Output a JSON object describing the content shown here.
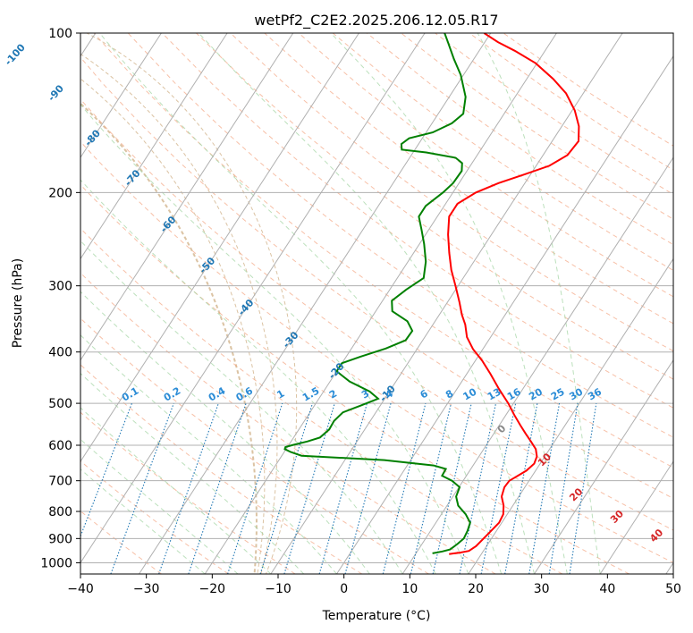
{
  "chart_data": {
    "type": "line",
    "title": "wetPf2_C2E2.2025.206.12.05.R17",
    "xlabel": "Temperature (°C)",
    "ylabel": "Pressure (hPa)",
    "xlim": [
      -40,
      50
    ],
    "ylim": [
      1050,
      100
    ],
    "y_scale": "log",
    "x_ticks": [
      "−40",
      "−30",
      "−20",
      "−10",
      "0",
      "10",
      "20",
      "30",
      "40",
      "50"
    ],
    "y_ticks": [
      {
        "p": 100,
        "label": "100"
      },
      {
        "p": 200,
        "label": "200"
      },
      {
        "p": 300,
        "label": "300"
      },
      {
        "p": 400,
        "label": "400"
      },
      {
        "p": 500,
        "label": "500"
      },
      {
        "p": 600,
        "label": "600"
      },
      {
        "p": 700,
        "label": "700"
      },
      {
        "p": 800,
        "label": "800"
      },
      {
        "p": 900,
        "label": "900"
      },
      {
        "p": 1000,
        "label": "1000"
      }
    ],
    "grid": true,
    "colors": {
      "temperature": "#ff0000",
      "dewpoint": "#008000",
      "grid": "#b0b0b0",
      "dry_adiabat": "#f4a582",
      "moist_adiabat": "#a6d5a6",
      "mixing_ratio": "#1f77b4",
      "thetae": "#d2b48c",
      "isotherm_label": "#1f77b4",
      "cape_label": "#d62728",
      "zero_label": "#888888"
    },
    "series": [
      {
        "key": "temperature",
        "points": [
          [
            15.1,
            963
          ],
          [
            16.6,
            957
          ],
          [
            17.8,
            950
          ],
          [
            18.4,
            930
          ],
          [
            18.8,
            900
          ],
          [
            19.2,
            870
          ],
          [
            19.6,
            840
          ],
          [
            19.4,
            810
          ],
          [
            18.6,
            780
          ],
          [
            17.4,
            750
          ],
          [
            16.9,
            720
          ],
          [
            17.0,
            700
          ],
          [
            17.8,
            685
          ],
          [
            18.6,
            670
          ],
          [
            19.1,
            650
          ],
          [
            18.8,
            630
          ],
          [
            17.9,
            610
          ],
          [
            16.4,
            590
          ],
          [
            14.8,
            570
          ],
          [
            13.2,
            550
          ],
          [
            11.2,
            525
          ],
          [
            9.2,
            500
          ],
          [
            6.4,
            470
          ],
          [
            3.6,
            440
          ],
          [
            1.0,
            415
          ],
          [
            -1.5,
            395
          ],
          [
            -3.6,
            375
          ],
          [
            -5.1,
            355
          ],
          [
            -6.6,
            340
          ],
          [
            -8.2,
            322
          ],
          [
            -10.4,
            300
          ],
          [
            -12.6,
            280
          ],
          [
            -14.6,
            260
          ],
          [
            -16.6,
            240
          ],
          [
            -18.2,
            222
          ],
          [
            -18.2,
            210
          ],
          [
            -16.5,
            200
          ],
          [
            -14.0,
            192
          ],
          [
            -11.0,
            185
          ],
          [
            -8.0,
            178
          ],
          [
            -6.3,
            170
          ],
          [
            -6.0,
            160
          ],
          [
            -7.4,
            150
          ],
          [
            -9.6,
            140
          ],
          [
            -12.6,
            130
          ],
          [
            -16.0,
            122
          ],
          [
            -20.2,
            114
          ],
          [
            -24.6,
            108
          ],
          [
            -28.0,
            104
          ],
          [
            -31.0,
            100
          ]
        ]
      },
      {
        "key": "dewpoint",
        "points": [
          [
            12.5,
            960
          ],
          [
            13.8,
            952
          ],
          [
            14.8,
            944
          ],
          [
            15.4,
            920
          ],
          [
            15.8,
            900
          ],
          [
            15.6,
            870
          ],
          [
            15.2,
            840
          ],
          [
            13.7,
            810
          ],
          [
            11.7,
            780
          ],
          [
            10.5,
            750
          ],
          [
            10.1,
            720
          ],
          [
            8.3,
            700
          ],
          [
            6.3,
            685
          ],
          [
            6.2,
            665
          ],
          [
            4.0,
            655
          ],
          [
            -4.0,
            640
          ],
          [
            -17.0,
            628
          ],
          [
            -19.0,
            618
          ],
          [
            -20.2,
            610
          ],
          [
            -20.3,
            605
          ],
          [
            -19.5,
            600
          ],
          [
            -17.5,
            590
          ],
          [
            -16.0,
            580
          ],
          [
            -15.4,
            560
          ],
          [
            -15.5,
            540
          ],
          [
            -15.0,
            520
          ],
          [
            -13.0,
            505
          ],
          [
            -11.0,
            490
          ],
          [
            -13.0,
            475
          ],
          [
            -17.0,
            455
          ],
          [
            -20.0,
            435
          ],
          [
            -20.0,
            420
          ],
          [
            -17.8,
            408
          ],
          [
            -14.8,
            394
          ],
          [
            -12.6,
            380
          ],
          [
            -12.5,
            365
          ],
          [
            -14.2,
            350
          ],
          [
            -17.5,
            335
          ],
          [
            -18.6,
            320
          ],
          [
            -17.5,
            305
          ],
          [
            -16.0,
            290
          ],
          [
            -17.3,
            270
          ],
          [
            -19.3,
            250
          ],
          [
            -21.1,
            235
          ],
          [
            -22.8,
            222
          ],
          [
            -22.8,
            212
          ],
          [
            -21.5,
            200
          ],
          [
            -20.9,
            192
          ],
          [
            -20.8,
            182
          ],
          [
            -21.5,
            176
          ],
          [
            -23.0,
            172
          ],
          [
            -28.0,
            168
          ],
          [
            -32.0,
            166
          ],
          [
            -32.6,
            162
          ],
          [
            -32.0,
            158
          ],
          [
            -29.0,
            154
          ],
          [
            -27.0,
            148
          ],
          [
            -26.2,
            142
          ],
          [
            -27.5,
            132
          ],
          [
            -30.4,
            120
          ],
          [
            -33.0,
            112
          ],
          [
            -35.6,
            104
          ],
          [
            -37.0,
            100
          ]
        ]
      }
    ],
    "labels": {
      "isotherm_labels": [
        {
          "text": "-100",
          "t": -100,
          "p": 110
        },
        {
          "text": "-90",
          "t": -90,
          "p": 130
        },
        {
          "text": "-80",
          "t": -80,
          "p": 158
        },
        {
          "text": "-70",
          "t": -70,
          "p": 188
        },
        {
          "text": "-60",
          "t": -60,
          "p": 230
        },
        {
          "text": "-50",
          "t": -50,
          "p": 275
        },
        {
          "text": "-40",
          "t": -40,
          "p": 330
        },
        {
          "text": "-30",
          "t": -30,
          "p": 380
        },
        {
          "text": "-20",
          "t": -20,
          "p": 435
        },
        {
          "text": "-10",
          "t": -10,
          "p": 480
        }
      ],
      "mixing_ratio_labels": [
        "0.1",
        "0.2",
        "0.4",
        "0.6",
        "1",
        "1.5",
        "2",
        "3",
        "4",
        "6",
        "8",
        "10",
        "13",
        "16",
        "20",
        "25",
        "30",
        "36"
      ],
      "mixing_ratio_values": [
        0.1,
        0.2,
        0.4,
        0.6,
        1,
        1.5,
        2,
        3,
        4,
        6,
        8,
        10,
        13,
        16,
        20,
        25,
        30,
        36
      ],
      "mixing_ratio_label_pressure": 500,
      "cape_labels": [
        {
          "text": "0",
          "x": 24,
          "p": 560
        },
        {
          "text": "10",
          "x": 30.5,
          "p": 640
        },
        {
          "text": "20",
          "x": 35.3,
          "p": 745
        },
        {
          "text": "30",
          "x": 41.5,
          "p": 820
        },
        {
          "text": "40",
          "x": 47.5,
          "p": 890
        }
      ]
    }
  }
}
